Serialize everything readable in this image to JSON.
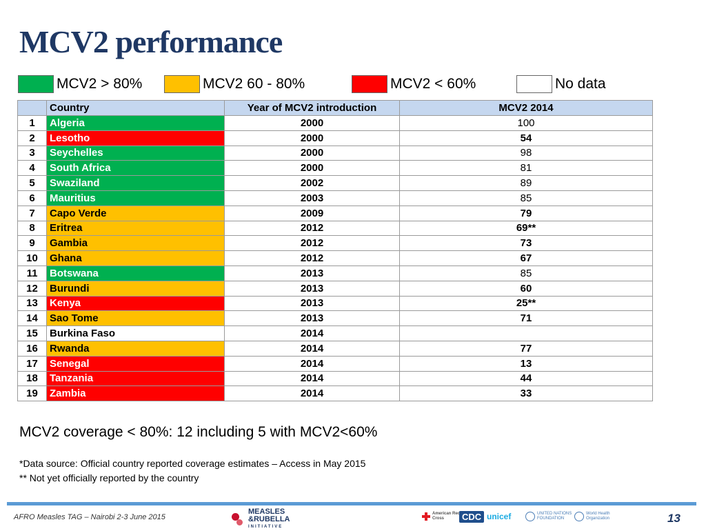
{
  "page": {
    "title": "MCV2 performance",
    "summary": "MCV2 coverage < 80%: 12 including 5 with MCV2<60%",
    "footnote_1": "*Data source: Official country reported coverage estimates – Access in May 2015",
    "footnote_2": "** Not yet officially reported by the country",
    "footer_left": "AFRO Measles TAG – Nairobi 2-3 June 2015",
    "page_number": "13"
  },
  "legend": [
    {
      "label": "MCV2 > 80%",
      "color": "#00b050"
    },
    {
      "label": "MCV2 60 - 80%",
      "color": "#ffc000"
    },
    {
      "label": "MCV2 < 60%",
      "color": "#ff0000"
    },
    {
      "label": "No data",
      "color": "#ffffff"
    }
  ],
  "table": {
    "headers": [
      "",
      "Country",
      "Year of MCV2 introduction",
      "MCV2 2014"
    ],
    "rows": [
      {
        "idx": "1",
        "country": "Algeria",
        "year": "2000",
        "mcv2": "100",
        "status": "green"
      },
      {
        "idx": "2",
        "country": "Lesotho",
        "year": "2000",
        "mcv2": "54",
        "status": "red"
      },
      {
        "idx": "3",
        "country": "Seychelles",
        "year": "2000",
        "mcv2": "98",
        "status": "green"
      },
      {
        "idx": "4",
        "country": "South Africa",
        "year": "2000",
        "mcv2": "81",
        "status": "green"
      },
      {
        "idx": "5",
        "country": "Swaziland",
        "year": "2002",
        "mcv2": "89",
        "status": "green"
      },
      {
        "idx": "6",
        "country": "Mauritius",
        "year": "2003",
        "mcv2": "85",
        "status": "green"
      },
      {
        "idx": "7",
        "country": "Capo Verde",
        "year": "2009",
        "mcv2": "79",
        "status": "yellow"
      },
      {
        "idx": "8",
        "country": "Eritrea",
        "year": "2012",
        "mcv2": "69**",
        "status": "yellow"
      },
      {
        "idx": "9",
        "country": "Gambia",
        "year": "2012",
        "mcv2": "73",
        "status": "yellow"
      },
      {
        "idx": "10",
        "country": "Ghana",
        "year": "2012",
        "mcv2": "67",
        "status": "yellow"
      },
      {
        "idx": "11",
        "country": "Botswana",
        "year": "2013",
        "mcv2": "85",
        "status": "green"
      },
      {
        "idx": "12",
        "country": "Burundi",
        "year": "2013",
        "mcv2": "60",
        "status": "yellow"
      },
      {
        "idx": "13",
        "country": "Kenya",
        "year": "2013",
        "mcv2": "25**",
        "status": "red"
      },
      {
        "idx": "14",
        "country": "Sao Tome",
        "year": "2013",
        "mcv2": "71",
        "status": "yellow"
      },
      {
        "idx": "15",
        "country": "Burkina Faso",
        "year": "2014",
        "mcv2": "",
        "status": "nodata"
      },
      {
        "idx": "16",
        "country": "Rwanda",
        "year": "2014",
        "mcv2": "77",
        "status": "yellow"
      },
      {
        "idx": "17",
        "country": "Senegal",
        "year": "2014",
        "mcv2": "13",
        "status": "red"
      },
      {
        "idx": "18",
        "country": "Tanzania",
        "year": "2014",
        "mcv2": "44",
        "status": "red"
      },
      {
        "idx": "19",
        "country": "Zambia",
        "year": "2014",
        "mcv2": "33",
        "status": "red"
      }
    ]
  },
  "logos": {
    "measles_rubella_line1": "MEASLES",
    "measles_rubella_line2": "&RUBELLA",
    "measles_rubella_line3": "INITIATIVE",
    "redcross": "American Red Cross",
    "cdc": "CDC",
    "unicef": "unicef",
    "un_foundation": "UNITED NATIONS FOUNDATION",
    "who": "World Health Organization"
  }
}
